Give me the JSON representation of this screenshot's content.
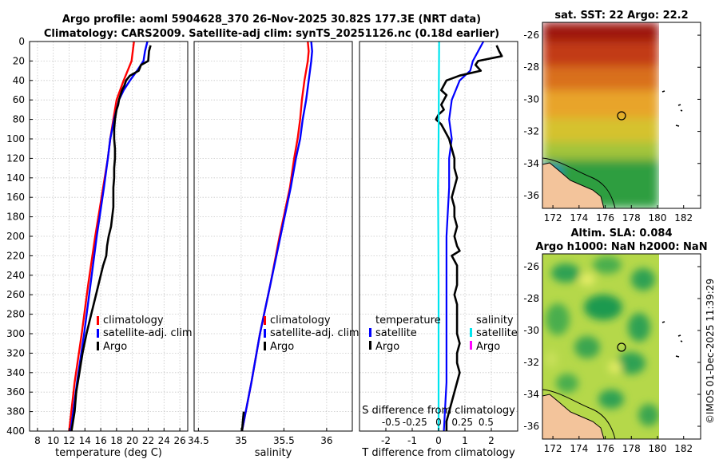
{
  "figure": {
    "title_line1": "Argo profile: aoml 5904628_370 26-Nov-2025 30.82S 177.3E (NRT data)",
    "title_line2": "Climatology: CARS2009. Satellite-adj clim: synTS_20251126.nc (0.18d earlier)",
    "credit": "©IMOS 01-Dec-2025 11:39:29"
  },
  "colors": {
    "climatology": "#ff0000",
    "satellite": "#0000ff",
    "argo": "#000000",
    "sat_salinity": "#00e5ee",
    "argo_salinity": "#ff00ff",
    "zero_line": "#00aaaa"
  },
  "chart_data": [
    {
      "id": "temperature",
      "type": "line",
      "xlabel": "temperature (deg C)",
      "ylabel": "",
      "xlim": [
        7,
        27
      ],
      "ylim": [
        400,
        0
      ],
      "x_ticks": [
        8,
        10,
        12,
        14,
        16,
        18,
        20,
        22,
        24,
        26
      ],
      "y_ticks": [
        0,
        20,
        40,
        60,
        80,
        100,
        120,
        140,
        160,
        180,
        200,
        220,
        240,
        260,
        280,
        300,
        320,
        340,
        360,
        380,
        400
      ],
      "grid": true,
      "legend_entries": [
        "climatology",
        "satellite-adj. clim",
        "Argo"
      ],
      "series": [
        {
          "name": "climatology",
          "color": "#ff0000",
          "depth": [
            0,
            20,
            40,
            60,
            80,
            100,
            120,
            150,
            200,
            250,
            300,
            350,
            400
          ],
          "values": [
            20.2,
            19.9,
            18.9,
            18.0,
            17.6,
            17.2,
            16.9,
            16.3,
            15.3,
            14.4,
            13.6,
            12.7,
            12.0
          ]
        },
        {
          "name": "satellite-adj. clim",
          "color": "#0000ff",
          "depth": [
            0,
            10,
            20,
            30,
            40,
            50,
            60,
            80,
            100,
            120,
            150,
            200,
            250,
            300,
            350,
            400
          ],
          "values": [
            21.9,
            21.6,
            21.4,
            20.6,
            19.7,
            18.9,
            18.3,
            17.7,
            17.2,
            16.9,
            16.4,
            15.5,
            14.7,
            13.9,
            13.0,
            12.2
          ]
        },
        {
          "name": "Argo",
          "color": "#000000",
          "depth": [
            4,
            10,
            20,
            24,
            30,
            35,
            40,
            45,
            50,
            55,
            60,
            65,
            70,
            80,
            90,
            100,
            110,
            120,
            130,
            140,
            150,
            170,
            190,
            200,
            210,
            220,
            230,
            240,
            260,
            280,
            300,
            320,
            340,
            360,
            380,
            400
          ],
          "values": [
            22.3,
            22.1,
            22.0,
            21.1,
            20.8,
            19.7,
            19.2,
            19.0,
            18.7,
            18.5,
            18.3,
            18.2,
            18.0,
            17.8,
            17.7,
            17.7,
            17.8,
            17.8,
            17.7,
            17.7,
            17.6,
            17.6,
            17.3,
            17.0,
            16.8,
            16.7,
            16.3,
            16.0,
            15.4,
            14.8,
            14.2,
            13.7,
            13.3,
            12.9,
            12.7,
            12.3
          ]
        }
      ]
    },
    {
      "id": "salinity",
      "type": "line",
      "xlabel": "salinity",
      "ylabel": "",
      "xlim": [
        34.45,
        36.3
      ],
      "ylim": [
        400,
        0
      ],
      "x_ticks": [
        34.5,
        35,
        35.5,
        36
      ],
      "x_tick_labels": [
        "34.5",
        "35",
        "35.5",
        "36"
      ],
      "y_ticks": [
        0,
        20,
        40,
        60,
        80,
        100,
        120,
        140,
        160,
        180,
        200,
        220,
        240,
        260,
        280,
        300,
        320,
        340,
        360,
        380,
        400
      ],
      "grid": true,
      "legend_entries": [
        "climatology",
        "satellite-adj. clim",
        "Argo"
      ],
      "series": [
        {
          "name": "climatology",
          "color": "#ff0000",
          "depth": [
            0,
            10,
            20,
            40,
            60,
            80,
            100,
            120,
            150,
            200,
            250,
            300,
            350,
            400
          ],
          "values": [
            35.78,
            35.79,
            35.78,
            35.74,
            35.71,
            35.69,
            35.66,
            35.62,
            35.57,
            35.45,
            35.34,
            35.22,
            35.12,
            35.01
          ]
        },
        {
          "name": "satellite-adj. clim",
          "color": "#0000ff",
          "depth": [
            0,
            10,
            20,
            40,
            60,
            80,
            100,
            120,
            150,
            200,
            250,
            300,
            350,
            400
          ],
          "values": [
            35.82,
            35.83,
            35.82,
            35.79,
            35.76,
            35.72,
            35.69,
            35.64,
            35.58,
            35.46,
            35.34,
            35.22,
            35.12,
            35.01
          ]
        },
        {
          "name": "Argo",
          "color": "#000000",
          "depth": [
            380,
            390,
            400
          ],
          "values": [
            35.03,
            35.02,
            35.01
          ]
        }
      ]
    },
    {
      "id": "difference",
      "type": "line",
      "xlabel": "T difference from climatology",
      "xlabel_top": "S difference from climatology",
      "xlim": [
        -3,
        3
      ],
      "ylim": [
        400,
        0
      ],
      "x_ticks": [
        -2,
        -1,
        0,
        1,
        2
      ],
      "x_tick_labels": [
        "-2",
        "-1",
        "0",
        "1",
        "2"
      ],
      "s_ticks": [
        -0.5,
        -0.25,
        0,
        0.25,
        0.5
      ],
      "s_tick_labels": [
        "-0.5",
        "-0.25",
        "0",
        "0.25",
        "0.5"
      ],
      "y_ticks": [
        0,
        20,
        40,
        60,
        80,
        100,
        120,
        140,
        160,
        180,
        200,
        220,
        240,
        260,
        280,
        300,
        320,
        340,
        360,
        380,
        400
      ],
      "grid": true,
      "legend_temperature_title": "temperature",
      "legend_salinity_title": "salinity",
      "legend_entries": [
        "satellite",
        "Argo",
        "satellite",
        "Argo"
      ],
      "series": [
        {
          "name": "temperature satellite",
          "color": "#0000ff",
          "depth": [
            0,
            10,
            20,
            30,
            40,
            60,
            80,
            100,
            120,
            150,
            200,
            250,
            300,
            350,
            400
          ],
          "values": [
            1.7,
            1.5,
            1.3,
            1.2,
            0.8,
            0.5,
            0.4,
            0.5,
            0.4,
            0.4,
            0.3,
            0.3,
            0.3,
            0.3,
            0.2
          ]
        },
        {
          "name": "temperature Argo",
          "color": "#000000",
          "depth": [
            4,
            10,
            15,
            20,
            24,
            30,
            35,
            40,
            45,
            50,
            55,
            60,
            65,
            70,
            75,
            80,
            85,
            90,
            100,
            110,
            120,
            130,
            140,
            150,
            160,
            170,
            180,
            190,
            200,
            210,
            215,
            220,
            225,
            230,
            240,
            250,
            260,
            270,
            280,
            290,
            300,
            310,
            320,
            330,
            340,
            350,
            360,
            370,
            380,
            390,
            400
          ],
          "values": [
            2.2,
            2.3,
            2.4,
            1.5,
            1.4,
            1.6,
            0.8,
            0.3,
            0.2,
            0.1,
            0.3,
            0.2,
            0.1,
            0.2,
            0.0,
            -0.1,
            0.1,
            0.2,
            0.4,
            0.5,
            0.6,
            0.6,
            0.7,
            0.6,
            0.5,
            0.6,
            0.6,
            0.7,
            0.6,
            0.7,
            0.8,
            0.5,
            0.6,
            0.7,
            0.7,
            0.7,
            0.6,
            0.7,
            0.7,
            0.7,
            0.7,
            0.8,
            0.7,
            0.7,
            0.8,
            0.7,
            0.6,
            0.5,
            0.4,
            0.3,
            0.3
          ]
        },
        {
          "name": "salinity satellite",
          "color": "#00e5ee",
          "depth": [
            0,
            50,
            100,
            150,
            200,
            250,
            300,
            350,
            400
          ],
          "values": [
            0.02,
            0.01,
            0.0,
            -0.02,
            -0.01,
            0.0,
            0.0,
            0.0,
            0.0
          ]
        }
      ]
    },
    {
      "id": "sst_map",
      "type": "heatmap",
      "title": "sat. SST: 22 Argo: 22.2",
      "x_ticks": [
        172,
        174,
        176,
        178,
        180,
        182
      ],
      "x_tick_labels": [
        "172",
        "174",
        "176",
        "178",
        "180",
        "182"
      ],
      "y_ticks": [
        -26,
        -28,
        -30,
        -32,
        -34,
        -36
      ],
      "y_tick_labels": [
        "-26",
        "-28",
        "-30",
        "-32",
        "-34",
        "-36"
      ],
      "xlim": [
        171.2,
        183.3
      ],
      "ylim": [
        -36.8,
        -25.2
      ],
      "data_extent_lon": 180.2,
      "argo_position": [
        177.3,
        -30.82
      ]
    },
    {
      "id": "sla_map",
      "type": "heatmap",
      "title_line1": "Altim. SLA: 0.084",
      "title_line2": "Argo h1000: NaN h2000: NaN",
      "x_ticks": [
        172,
        174,
        176,
        178,
        180,
        182
      ],
      "x_tick_labels": [
        "172",
        "174",
        "176",
        "178",
        "180",
        "182"
      ],
      "y_ticks": [
        -26,
        -28,
        -30,
        -32,
        -34,
        -36
      ],
      "y_tick_labels": [
        "-26",
        "-28",
        "-30",
        "-32",
        "-34",
        "-36"
      ],
      "xlim": [
        171.2,
        183.3
      ],
      "ylim": [
        -36.8,
        -25.2
      ],
      "data_extent_lon": 180.2,
      "argo_position": [
        177.3,
        -30.82
      ]
    }
  ]
}
